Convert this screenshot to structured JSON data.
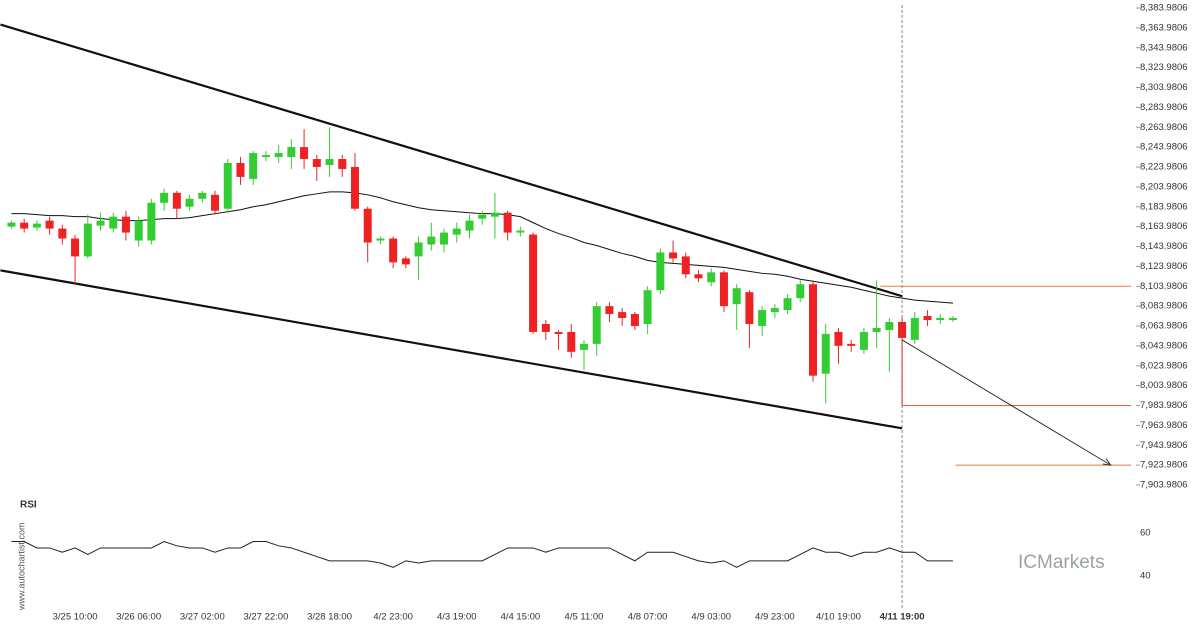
{
  "chart_data": [
    {
      "type": "candlestick",
      "categories": [
        null,
        null,
        null,
        null,
        null,
        "3/25 10:00",
        null,
        null,
        null,
        null,
        "3/26 06:00",
        null,
        null,
        null,
        null,
        "3/27 02:00",
        null,
        null,
        null,
        null,
        "3/27 22:00",
        null,
        null,
        null,
        null,
        "3/28 18:00",
        null,
        null,
        null,
        null,
        "4/2 23:00",
        null,
        null,
        null,
        null,
        "4/3 19:00",
        null,
        null,
        null,
        null,
        "4/4 15:00",
        null,
        null,
        null,
        null,
        "4/5 11:00",
        null,
        null,
        null,
        null,
        "4/8 07:00",
        null,
        null,
        null,
        null,
        "4/9 03:00",
        null,
        null,
        null,
        null,
        "4/9 23:00",
        null,
        null,
        null,
        null,
        "4/10 19:00",
        null,
        null,
        null,
        null,
        "4/11 19:00",
        null,
        null,
        null,
        null
      ],
      "open": [
        8164,
        8168,
        8163,
        8170,
        8162,
        8152,
        8134,
        8165,
        8162,
        8174,
        8150,
        8150,
        8188,
        8198,
        8184,
        8192,
        8196,
        8182,
        8228,
        8212,
        8234,
        8234,
        8234,
        8244,
        8232,
        8226,
        8232,
        8224,
        8182,
        8150,
        8152,
        8132,
        8134,
        8146,
        8146,
        8156,
        8160,
        8172,
        8174,
        8178,
        8158,
        8156,
        8066,
        8058,
        8058,
        8040,
        8046,
        8084,
        8078,
        8076,
        8066,
        8100,
        8138,
        8134,
        8116,
        8108,
        8118,
        8086,
        8098,
        8064,
        8078,
        8080,
        8092,
        8106,
        8016,
        8058,
        8046,
        8040,
        8058,
        8060,
        8068,
        8050,
        8074,
        8070,
        8070
      ],
      "high": [
        8170,
        8172,
        8170,
        8174,
        8166,
        8156,
        8176,
        8178,
        8178,
        8180,
        8174,
        8192,
        8202,
        8200,
        8196,
        8200,
        8200,
        8232,
        8234,
        8240,
        8240,
        8246,
        8252,
        8262,
        8236,
        8264,
        8236,
        8238,
        8184,
        8154,
        8154,
        8134,
        8154,
        8168,
        8162,
        8168,
        8176,
        8180,
        8198,
        8180,
        8164,
        8158,
        8070,
        8060,
        8066,
        8050,
        8088,
        8088,
        8082,
        8078,
        8104,
        8142,
        8150,
        8138,
        8120,
        8122,
        8120,
        8106,
        8100,
        8084,
        8086,
        8096,
        8110,
        8110,
        8066,
        8062,
        8050,
        8062,
        8110,
        8072,
        8072,
        8078,
        8080,
        8076,
        8074
      ],
      "low": [
        8162,
        8158,
        8160,
        8156,
        8146,
        8106,
        8132,
        8160,
        8158,
        8150,
        8144,
        8146,
        8180,
        8172,
        8180,
        8188,
        8176,
        8178,
        8206,
        8206,
        8230,
        8228,
        8222,
        8222,
        8210,
        8214,
        8214,
        8180,
        8128,
        8146,
        8122,
        8122,
        8110,
        8140,
        8138,
        8148,
        8152,
        8166,
        8152,
        8150,
        8154,
        8056,
        8050,
        8040,
        8032,
        8020,
        8034,
        8068,
        8064,
        8060,
        8056,
        8096,
        8128,
        8112,
        8108,
        8104,
        8078,
        8060,
        8042,
        8054,
        8072,
        8076,
        8088,
        8008,
        7986,
        8026,
        8038,
        8036,
        8042,
        8018,
        7984,
        8046,
        8064,
        8066,
        8068
      ],
      "close": [
        8168,
        8162,
        8167,
        8162,
        8152,
        8134,
        8167,
        8170,
        8174,
        8158,
        8170,
        8188,
        8198,
        8182,
        8192,
        8198,
        8180,
        8228,
        8214,
        8238,
        8236,
        8238,
        8244,
        8232,
        8224,
        8232,
        8222,
        8182,
        8148,
        8152,
        8128,
        8126,
        8148,
        8154,
        8158,
        8162,
        8170,
        8176,
        8178,
        8158,
        8160,
        8058,
        8058,
        8056,
        8038,
        8046,
        8084,
        8076,
        8072,
        8064,
        8100,
        8138,
        8132,
        8116,
        8112,
        8118,
        8084,
        8102,
        8066,
        8080,
        8082,
        8092,
        8106,
        8014,
        8056,
        8044,
        8044,
        8058,
        8062,
        8068,
        8052,
        8072,
        8070,
        8072,
        8072
      ],
      "up_color": "#33cc33",
      "down_color": "#ee2222",
      "ma": {
        "color": "#111111",
        "values": [
          8177,
          8177,
          8176,
          8175,
          8175,
          8174,
          8174,
          8172,
          8171,
          8170,
          8170,
          8171,
          8172,
          8172,
          8173,
          8175,
          8177,
          8179,
          8181,
          8184,
          8186,
          8189,
          8192,
          8195,
          8197,
          8199,
          8199,
          8198,
          8196,
          8193,
          8189,
          8186,
          8183,
          8181,
          8180,
          8179,
          8178,
          8177,
          8177,
          8176,
          8174,
          8168,
          8162,
          8157,
          8153,
          8148,
          8145,
          8141,
          8137,
          8134,
          8130,
          8128,
          8127,
          8126,
          8125,
          8124,
          8123,
          8121,
          8119,
          8117,
          8116,
          8114,
          8111,
          8109,
          8107,
          8105,
          8103,
          8100,
          8097,
          8094,
          8092,
          8090,
          8089,
          8088,
          8087
        ]
      },
      "channel": {
        "x": [
          0,
          70
        ],
        "upper": [
          8364,
          8094
        ],
        "lower": [
          8118,
          7961
        ],
        "color": "#111111"
      },
      "levels": [
        {
          "value": 8103.9806,
          "x": [
            68.3,
            88.0
          ],
          "color": "#e87b3a"
        },
        {
          "value": 7983.9806,
          "x": [
            70,
            88.0
          ],
          "color": "#e0603a"
        },
        {
          "value": 7923.9806,
          "x": [
            74.2,
            88.0
          ],
          "color": "#e87b3a"
        }
      ],
      "forecast": {
        "x": [
          70,
          86.4
        ],
        "y": [
          8050,
          7923.9806
        ],
        "color": "#333333"
      },
      "now_index": 70,
      "xlim": [
        -0.9,
        88.7
      ],
      "ylim": [
        7893.92,
        8392.03
      ],
      "yticks": [
        {
          "value": 8383.9806,
          "label": "8,383.9806"
        },
        {
          "value": 8363.9806,
          "label": "8,363.9806"
        },
        {
          "value": 8343.9806,
          "label": "8,343.9806"
        },
        {
          "value": 8323.9806,
          "label": "8,323.9806"
        },
        {
          "value": 8303.9806,
          "label": "8,303.9806"
        },
        {
          "value": 8283.9806,
          "label": "8,283.9806"
        },
        {
          "value": 8263.9806,
          "label": "8,263.9806"
        },
        {
          "value": 8243.9806,
          "label": "8,243.9806"
        },
        {
          "value": 8223.9806,
          "label": "8,223.9806"
        },
        {
          "value": 8203.9806,
          "label": "8,203.9806"
        },
        {
          "value": 8183.9806,
          "label": "8,183.9806"
        },
        {
          "value": 8163.9806,
          "label": "8,163.9806"
        },
        {
          "value": 8143.9806,
          "label": "8,143.9806"
        },
        {
          "value": 8123.9806,
          "label": "8,123.9806"
        },
        {
          "value": 8103.9806,
          "label": "8,103.9806"
        },
        {
          "value": 8083.9806,
          "label": "8,083.9806"
        },
        {
          "value": 8063.9806,
          "label": "8,063.9806"
        },
        {
          "value": 8043.9806,
          "label": "8,043.9806"
        },
        {
          "value": 8023.9806,
          "label": "8,023.9806"
        },
        {
          "value": 8003.9806,
          "label": "8,003.9806"
        },
        {
          "value": 7983.9806,
          "label": "7,983.9806"
        },
        {
          "value": 7963.9806,
          "label": "7,963.9806"
        },
        {
          "value": 7943.9806,
          "label": "7,943.9806"
        },
        {
          "value": 7923.9806,
          "label": "7,923.9806"
        },
        {
          "value": 7903.9806,
          "label": "7,903.9806"
        }
      ]
    },
    {
      "type": "line",
      "title": "RSI",
      "color": "#222222",
      "values": [
        56,
        56,
        53,
        53,
        51,
        53,
        50,
        53,
        53,
        53,
        53,
        53,
        56,
        54,
        53,
        53,
        51,
        53,
        53,
        56,
        56,
        54,
        53,
        51,
        49,
        47,
        47,
        47,
        47,
        46,
        44,
        47,
        46,
        47,
        47,
        47,
        47,
        47,
        50,
        53,
        53,
        53,
        51,
        53,
        53,
        53,
        53,
        53,
        50,
        47,
        51,
        51,
        51,
        49,
        47,
        46,
        47,
        44,
        47,
        47,
        47,
        47,
        50,
        53,
        51,
        51,
        49,
        51,
        51,
        53,
        51,
        51,
        47,
        47,
        47
      ],
      "ylim": [
        28.8,
        75.3
      ],
      "yticks": [
        40,
        60
      ]
    }
  ],
  "watermark": "www.autochartist.com",
  "brand": "ICMarkets"
}
